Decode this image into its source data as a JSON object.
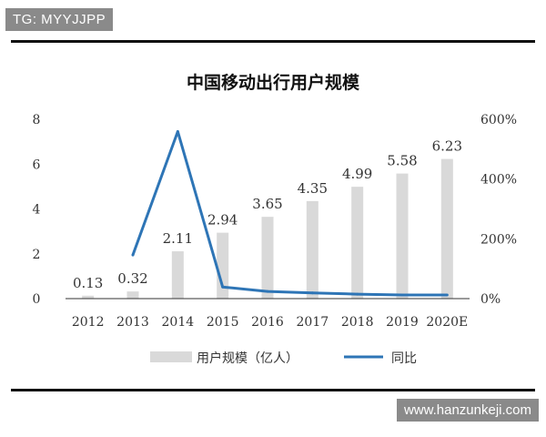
{
  "watermark_top": "TG: MYYJJPP",
  "watermark_bottom": "www.hanzunkeji.com",
  "chart_data": {
    "type": "bar",
    "title": "中国移动出行用户规模",
    "categories": [
      "2012",
      "2013",
      "2014",
      "2015",
      "2016",
      "2017",
      "2018",
      "2019",
      "2020E"
    ],
    "series": [
      {
        "name": "用户规模（亿人）",
        "type": "bar",
        "axis": "left",
        "color": "#d9d9d9",
        "values": [
          0.13,
          0.32,
          2.11,
          2.94,
          3.65,
          4.35,
          4.99,
          5.58,
          6.23
        ],
        "labels": [
          "0.13",
          "0.32",
          "2.11",
          "2.94",
          "3.65",
          "4.35",
          "4.99",
          "5.58",
          "6.23"
        ]
      },
      {
        "name": "同比",
        "type": "line",
        "axis": "right",
        "color": "#2e75b6",
        "values": [
          null,
          146,
          559,
          39,
          24,
          19,
          15,
          12,
          12
        ]
      }
    ],
    "y_left": {
      "ylim": [
        0,
        8
      ],
      "ticks": [
        "0",
        "2",
        "4",
        "6",
        "8"
      ]
    },
    "y_right": {
      "ylim": [
        0,
        600
      ],
      "ticks": [
        "0%",
        "200%",
        "400%",
        "600%"
      ]
    },
    "legend_position": "bottom",
    "grid": false
  }
}
